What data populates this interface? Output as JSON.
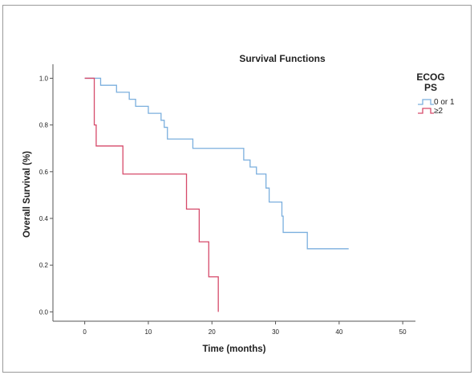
{
  "chart_data": {
    "type": "line",
    "step": true,
    "title": "Survival Functions",
    "xlabel": "Time (months)",
    "ylabel": "Overall Survival (%)",
    "xlim": [
      -5,
      52
    ],
    "ylim": [
      -0.04,
      1.06
    ],
    "xticks": [
      0,
      10,
      20,
      30,
      40,
      50
    ],
    "yticks": [
      0.0,
      0.2,
      0.4,
      0.6,
      0.8,
      1.0
    ],
    "ytick_labels": [
      "0.0",
      "0.2",
      "0.4",
      "0.6",
      "0.8",
      "1.0"
    ],
    "grid": false,
    "legend": {
      "title": [
        "ECOG",
        "PS"
      ],
      "position": "top-right"
    },
    "series": [
      {
        "name": "0 or 1",
        "color": "#7bafde",
        "x": [
          0,
          2.5,
          5,
          7,
          8,
          10,
          12,
          12.5,
          13,
          17,
          25,
          26,
          27,
          28.5,
          29,
          31,
          31.2,
          35,
          41.5
        ],
        "y": [
          1.0,
          0.97,
          0.94,
          0.91,
          0.88,
          0.85,
          0.82,
          0.79,
          0.74,
          0.7,
          0.65,
          0.62,
          0.59,
          0.53,
          0.47,
          0.41,
          0.34,
          0.27,
          0.27
        ]
      },
      {
        "name": "≥2",
        "color": "#d64a6a",
        "x": [
          0,
          1.5,
          1.8,
          6,
          16,
          18,
          19.5,
          21
        ],
        "y": [
          1.0,
          0.8,
          0.71,
          0.59,
          0.44,
          0.3,
          0.15,
          0.0
        ]
      }
    ]
  }
}
